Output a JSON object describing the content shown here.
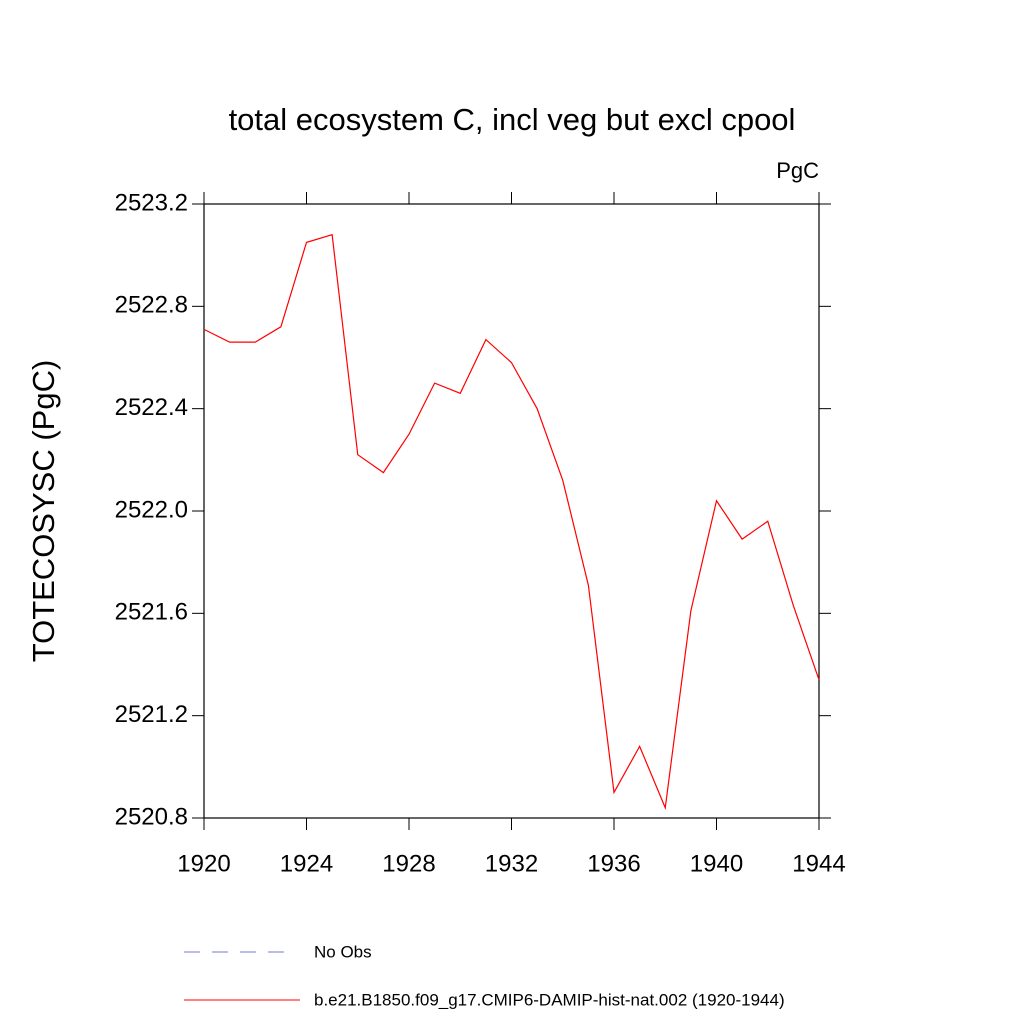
{
  "chart_data": {
    "type": "line",
    "title": "total ecosystem C, incl veg but excl cpool",
    "units": "PgC",
    "y_label": "TOTECOSYSC  (PgC)",
    "x": [
      1920,
      1921,
      1922,
      1923,
      1924,
      1925,
      1926,
      1927,
      1928,
      1929,
      1930,
      1931,
      1932,
      1933,
      1934,
      1935,
      1936,
      1937,
      1938,
      1939,
      1940,
      1941,
      1942,
      1943,
      1944
    ],
    "series": [
      {
        "name": "b.e21.B1850.f09_g17.CMIP6-DAMIP-hist-nat.002 (1920-1944)",
        "color": "#ff0000",
        "values": [
          2522.71,
          2522.66,
          2522.66,
          2522.72,
          2523.05,
          2523.08,
          2522.22,
          2522.15,
          2522.3,
          2522.5,
          2522.46,
          2522.67,
          2522.58,
          2522.4,
          2522.12,
          2521.71,
          2520.9,
          2521.08,
          2520.84,
          2521.61,
          2522.04,
          2521.89,
          2521.96,
          2521.63,
          2521.34
        ]
      }
    ],
    "extra_legend": {
      "name": "No Obs",
      "color": "#7a7ad0",
      "style": "dashed"
    },
    "xlim": [
      1920,
      1944
    ],
    "xticks": [
      1920,
      1924,
      1928,
      1932,
      1936,
      1940,
      1944
    ],
    "ylim": [
      2520.8,
      2523.2
    ],
    "yticks": [
      2520.8,
      2521.2,
      2521.6,
      {
        "value": 2522.0,
        "label": "2522.0"
      },
      2522.4,
      2522.8,
      2523.2
    ]
  }
}
